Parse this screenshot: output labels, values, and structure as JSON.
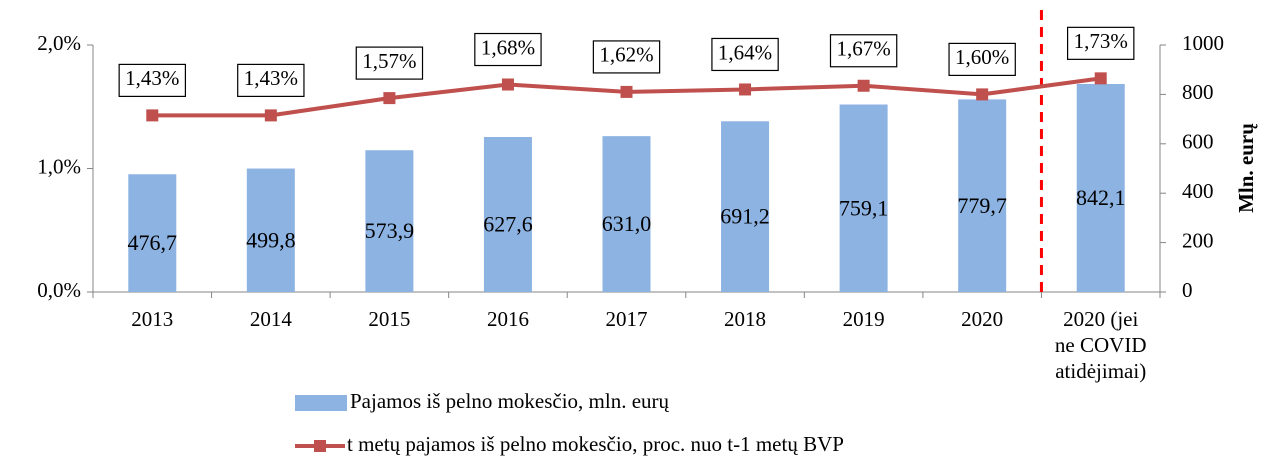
{
  "chart_data": {
    "type": "bar+line",
    "categories": [
      "2013",
      "2014",
      "2015",
      "2016",
      "2017",
      "2018",
      "2019",
      "2020",
      "2020 (jei ne COVID atidėjimai)"
    ],
    "series": [
      {
        "name": "Pajamos iš pelno mokesčio, mln. eurų",
        "type": "bar",
        "axis": "y2",
        "color": "#8db3e2",
        "values": [
          476.7,
          499.8,
          573.9,
          627.6,
          631.0,
          691.2,
          759.1,
          779.7,
          842.1
        ],
        "value_labels": [
          "476,7",
          "499,8",
          "573,9",
          "627,6",
          "631,0",
          "691,2",
          "759,1",
          "779,7",
          "842,1"
        ]
      },
      {
        "name": "t metų pajamos iš pelno mokesčio, proc. nuo t-1 metų BVP",
        "type": "line",
        "axis": "y",
        "color": "#c0504d",
        "values": [
          1.43,
          1.43,
          1.57,
          1.68,
          1.62,
          1.64,
          1.67,
          1.6,
          1.73
        ],
        "value_labels": [
          "1,43%",
          "1,43%",
          "1,57%",
          "1,68%",
          "1,62%",
          "1,64%",
          "1,67%",
          "1,60%",
          "1,73%"
        ]
      }
    ],
    "ylim": [
      0,
      2
    ],
    "yticks": [
      {
        "value": 0,
        "label": "0,0%"
      },
      {
        "value": 1,
        "label": "1,0%"
      },
      {
        "value": 2,
        "label": "2,0%"
      }
    ],
    "y2lim": [
      0,
      1000
    ],
    "y2ticks": [
      0,
      200,
      400,
      600,
      800,
      1000
    ],
    "y2label": "Mln. eurų",
    "legend": "bottom"
  }
}
